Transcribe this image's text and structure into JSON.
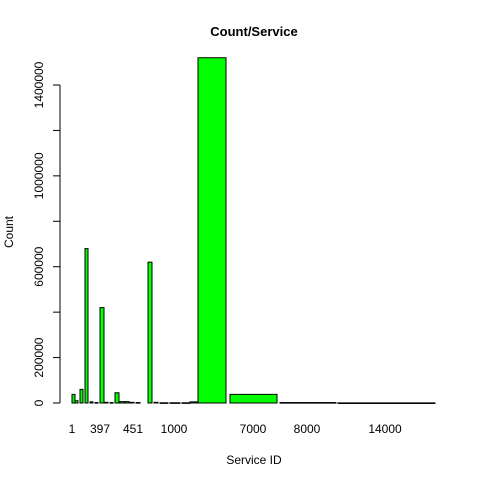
{
  "chart_data": {
    "type": "bar",
    "title": "Count/Service",
    "xlabel": "Service ID",
    "ylabel": "Count",
    "ylim": [
      0,
      1500000
    ],
    "yticks": [
      0,
      200000,
      600000,
      1000000,
      1400000
    ],
    "x_tick_labels": [
      "1",
      "397",
      "451",
      "1000",
      "7000",
      "8000",
      "14000"
    ],
    "bar_color": "#00ff00",
    "bar_border_color": "#000000",
    "grid": false,
    "legend": "none",
    "bars": [
      {
        "label": "",
        "value": 38000
      },
      {
        "label": "",
        "value": 10000
      },
      {
        "label": "",
        "value": 60000
      },
      {
        "label": "",
        "value": 680000
      },
      {
        "label": "",
        "value": 5000
      },
      {
        "label": "",
        "value": 2000
      },
      {
        "label": "",
        "value": 420000
      },
      {
        "label": "",
        "value": 3000
      },
      {
        "label": "",
        "value": 2000
      },
      {
        "label": "",
        "value": 45000
      },
      {
        "label": "",
        "value": 6000
      },
      {
        "label": "",
        "value": 6000
      },
      {
        "label": "",
        "value": 3000
      },
      {
        "label": "",
        "value": 2000
      },
      {
        "label": "",
        "value": 620000
      },
      {
        "label": "",
        "value": 3000
      },
      {
        "label": "",
        "value": 1000
      },
      {
        "label": "",
        "value": 1000
      },
      {
        "label": "",
        "value": 1000
      },
      {
        "label": "",
        "value": 5000
      },
      {
        "label": "",
        "value": 1520000
      },
      {
        "label": "",
        "value": 38000
      },
      {
        "label": "",
        "value": 2000
      },
      {
        "label": "",
        "value": 500
      }
    ]
  }
}
